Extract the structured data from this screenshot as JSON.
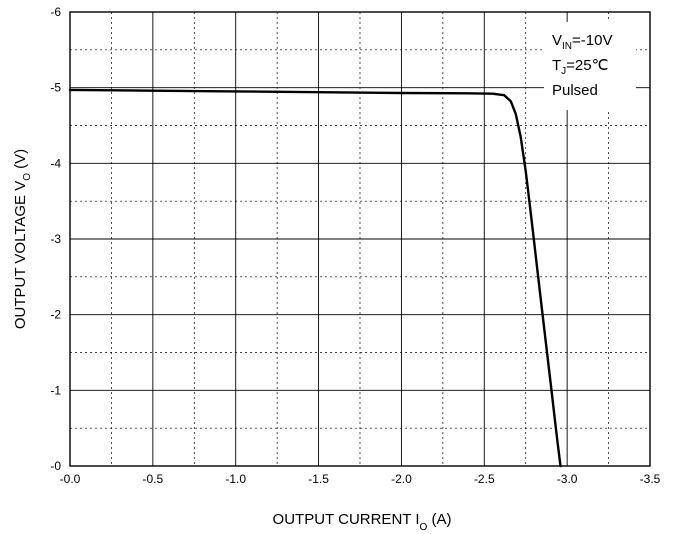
{
  "chart_data": {
    "type": "line",
    "xlabel": {
      "main": "OUTPUT CURRENT",
      "symbol": "I",
      "subscript": "O",
      "unit": "(A)"
    },
    "ylabel": {
      "main": "OUTPUT VOLTAGE",
      "symbol": "V",
      "subscript": "O",
      "unit": "(V)"
    },
    "x_ticks": [
      "-0.0",
      "-0.5",
      "-1.0",
      "-1.5",
      "-2.0",
      "-2.5",
      "-3.0",
      "-3.5"
    ],
    "y_ticks": [
      "-0",
      "-1",
      "-2",
      "-3",
      "-4",
      "-5",
      "-6"
    ],
    "xlim": [
      0,
      -3.5
    ],
    "ylim": [
      0,
      -6
    ],
    "grid": true,
    "annotations": [
      {
        "main": "V",
        "sub": "IN",
        "rest": "=-10V"
      },
      {
        "main": "T",
        "sub": "J",
        "rest": "=25℃"
      },
      {
        "main": "Pulsed",
        "sub": "",
        "rest": ""
      }
    ],
    "series": [
      {
        "x": [
          0,
          -0.5,
          -1.0,
          -1.5,
          -2.0,
          -2.4,
          -2.55,
          -2.62,
          -2.66,
          -2.69,
          -2.72,
          -2.75,
          -2.78,
          -2.82,
          -2.86,
          -2.9,
          -2.94,
          -2.96
        ],
        "y": [
          -4.97,
          -4.96,
          -4.95,
          -4.94,
          -4.93,
          -4.925,
          -4.92,
          -4.9,
          -4.82,
          -4.65,
          -4.35,
          -3.9,
          -3.35,
          -2.6,
          -1.85,
          -1.1,
          -0.35,
          0
        ]
      }
    ]
  }
}
